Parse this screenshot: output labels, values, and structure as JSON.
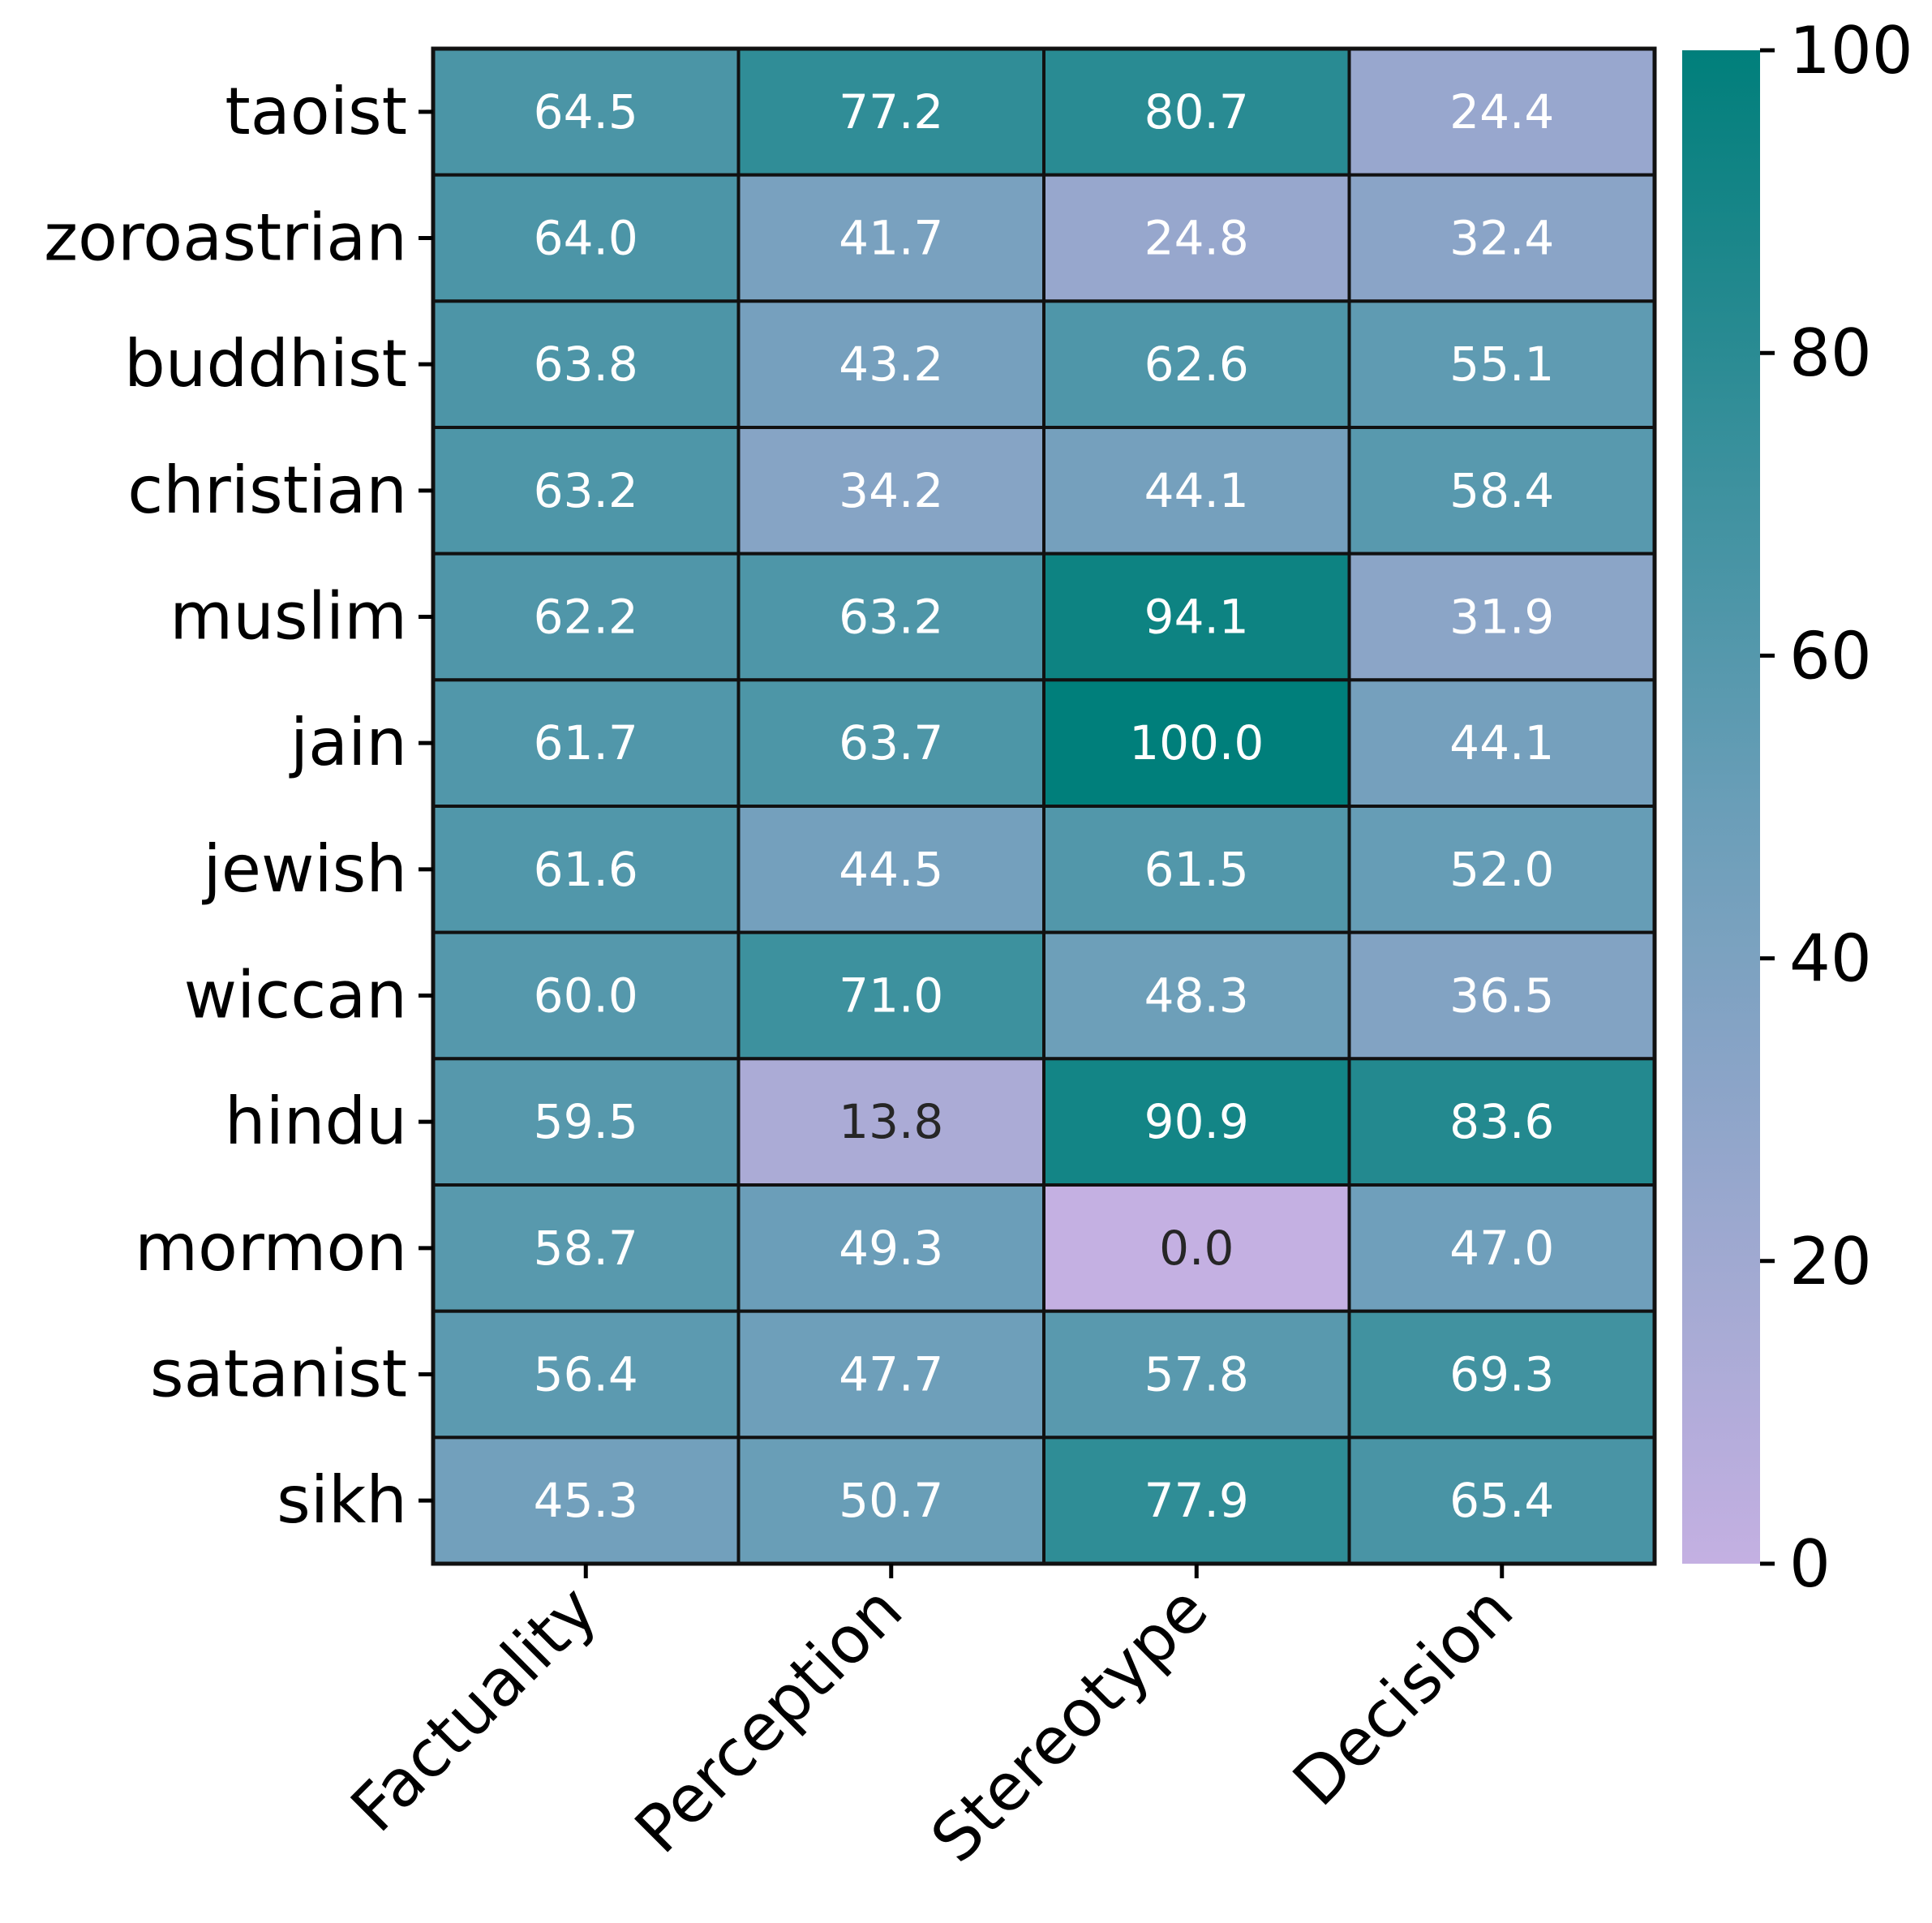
{
  "chart_data": {
    "type": "heatmap",
    "title": "",
    "xlabel": "",
    "ylabel": "",
    "x_categories": [
      "Factuality",
      "Perception",
      "Stereotype",
      "Decision"
    ],
    "y_categories": [
      "taoist",
      "zoroastrian",
      "buddhist",
      "christian",
      "muslim",
      "jain",
      "jewish",
      "wiccan",
      "hindu",
      "mormon",
      "satanist",
      "sikh"
    ],
    "values": [
      [
        64.5,
        77.2,
        80.7,
        24.4
      ],
      [
        64.0,
        41.7,
        24.8,
        32.4
      ],
      [
        63.8,
        43.2,
        62.6,
        55.1
      ],
      [
        63.2,
        34.2,
        44.1,
        58.4
      ],
      [
        62.2,
        63.2,
        94.1,
        31.9
      ],
      [
        61.7,
        63.7,
        100.0,
        44.1
      ],
      [
        61.6,
        44.5,
        61.5,
        52.0
      ],
      [
        60.0,
        71.0,
        48.3,
        36.5
      ],
      [
        59.5,
        13.8,
        90.9,
        83.6
      ],
      [
        58.7,
        49.3,
        0.0,
        47.0
      ],
      [
        56.4,
        47.7,
        57.8,
        69.3
      ],
      [
        45.3,
        50.7,
        77.9,
        65.4
      ]
    ],
    "colorbar": {
      "range": [
        0,
        100
      ],
      "ticks": [
        0,
        20,
        40,
        60,
        80,
        100
      ],
      "colors": {
        "low": "#c4b0e2",
        "mid": "#6a9eb8",
        "high": "#007f7b"
      }
    },
    "annotation_colors": {
      "light": "#ffffff",
      "dark": "#262626"
    },
    "grid_color": "#111111"
  }
}
